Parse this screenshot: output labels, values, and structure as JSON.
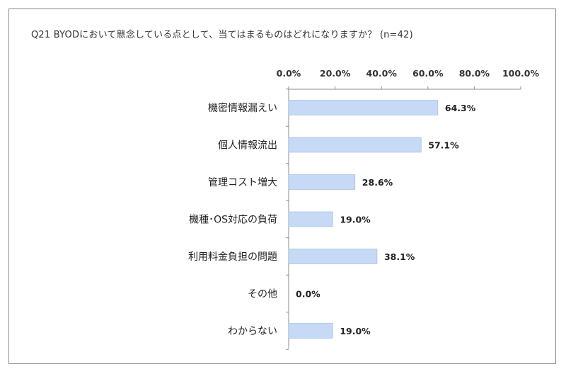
{
  "chart_data": {
    "type": "bar",
    "orientation": "horizontal",
    "title": "Q21 BYODにおいて懸念している点として、当てはまるものはどれになりますか？ (n=42)",
    "categories": [
      "機密情報漏えい",
      "個人情報流出",
      "管理コスト増大",
      "機種･OS対応の負荷",
      "利用料金負担の問題",
      "その他",
      "わからない"
    ],
    "values": [
      64.3,
      57.1,
      28.6,
      19.0,
      38.1,
      0.0,
      19.0
    ],
    "value_labels": [
      "64.3%",
      "57.1%",
      "28.6%",
      "19.0%",
      "38.1%",
      "0.0%",
      "19.0%"
    ],
    "xlim": [
      0,
      100
    ],
    "x_ticks": [
      0,
      20,
      40,
      60,
      80,
      100
    ],
    "x_tick_labels": [
      "0.0%",
      "20.0%",
      "40.0%",
      "60.0%",
      "80.0%",
      "100.0%"
    ],
    "x_axis_position": "top",
    "xlabel": "",
    "ylabel": "",
    "grid": false,
    "legend": "none",
    "bar_color": "#c6d9f5",
    "bar_border_color": "#9bb7e0"
  }
}
